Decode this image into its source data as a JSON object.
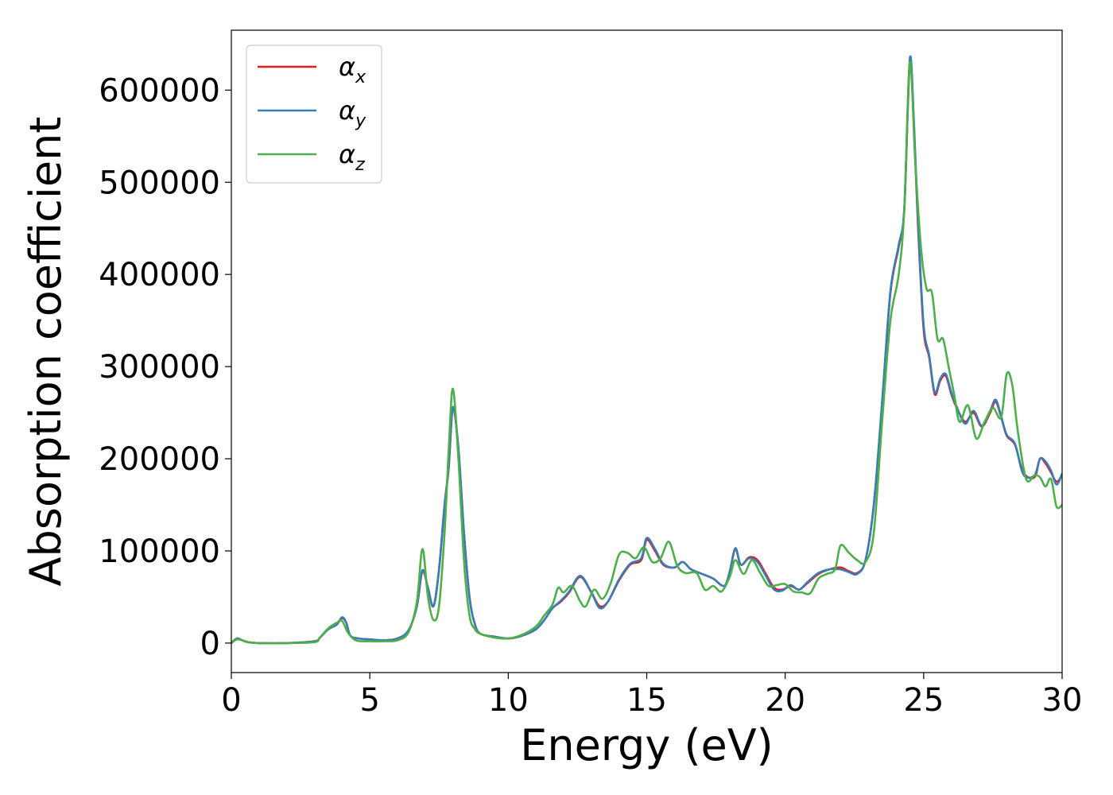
{
  "chart_data": {
    "type": "line",
    "title": "",
    "xlabel": "Energy (eV)",
    "ylabel": "Absorption coefficient",
    "xlim": [
      0,
      30
    ],
    "ylim": [
      -32000,
      665000
    ],
    "xticks": [
      0,
      5,
      10,
      15,
      20,
      25,
      30
    ],
    "yticks": [
      0,
      100000,
      200000,
      300000,
      400000,
      500000,
      600000
    ],
    "grid": false,
    "legend_position": "top-left",
    "series": [
      {
        "name": "α",
        "subscript": "x",
        "color": "#e41a1c",
        "x": [
          0,
          0.2,
          0.4,
          0.6,
          1,
          2,
          3,
          3.2,
          3.5,
          3.8,
          4.0,
          4.15,
          4.3,
          4.6,
          5.0,
          5.5,
          6.0,
          6.4,
          6.7,
          6.9,
          7.1,
          7.3,
          7.5,
          7.7,
          7.85,
          8.0,
          8.2,
          8.4,
          8.6,
          8.8,
          9.0,
          9.5,
          10,
          10.5,
          11,
          11.3,
          11.6,
          11.9,
          12.2,
          12.6,
          13.0,
          13.3,
          13.6,
          14.0,
          14.4,
          14.8,
          15.0,
          15.3,
          15.6,
          16.0,
          16.3,
          16.6,
          17.0,
          17.4,
          17.8,
          18.0,
          18.2,
          18.4,
          18.7,
          19.0,
          19.3,
          19.6,
          19.9,
          20.2,
          20.5,
          20.8,
          21.2,
          21.6,
          22.0,
          22.3,
          22.6,
          22.9,
          23.2,
          23.5,
          23.8,
          24.1,
          24.3,
          24.5,
          24.65,
          24.8,
          25.0,
          25.2,
          25.4,
          25.6,
          25.8,
          26.0,
          26.2,
          26.5,
          26.8,
          27.1,
          27.4,
          27.6,
          27.8,
          28.0,
          28.3,
          28.6,
          29.0,
          29.2,
          29.4,
          29.6,
          29.8,
          30
        ],
        "y": [
          0,
          5000,
          3000,
          1000,
          0,
          0,
          2000,
          6000,
          15000,
          20000,
          27000,
          22000,
          8000,
          5000,
          4000,
          3000,
          5000,
          14000,
          40000,
          78000,
          60000,
          40000,
          80000,
          150000,
          190000,
          255000,
          210000,
          120000,
          50000,
          20000,
          10000,
          7000,
          5000,
          8000,
          15000,
          25000,
          38000,
          45000,
          55000,
          72000,
          55000,
          40000,
          45000,
          68000,
          85000,
          90000,
          112000,
          100000,
          85000,
          82000,
          88000,
          80000,
          75000,
          70000,
          62000,
          78000,
          102000,
          85000,
          93000,
          90000,
          75000,
          60000,
          58000,
          62000,
          58000,
          65000,
          75000,
          80000,
          82000,
          78000,
          76000,
          90000,
          150000,
          260000,
          380000,
          430000,
          470000,
          630000,
          560000,
          450000,
          340000,
          310000,
          270000,
          285000,
          290000,
          270000,
          255000,
          240000,
          250000,
          235000,
          250000,
          262000,
          245000,
          225000,
          215000,
          185000,
          180000,
          200000,
          195000,
          185000,
          175000,
          182000
        ]
      },
      {
        "name": "α",
        "subscript": "y",
        "color": "#377eb8",
        "x": [
          0,
          0.2,
          0.4,
          0.6,
          1,
          2,
          3,
          3.2,
          3.5,
          3.8,
          4.0,
          4.15,
          4.3,
          4.6,
          5.0,
          5.5,
          6.0,
          6.4,
          6.7,
          6.9,
          7.1,
          7.3,
          7.5,
          7.7,
          7.85,
          8.0,
          8.2,
          8.4,
          8.6,
          8.8,
          9.0,
          9.5,
          10,
          10.5,
          11,
          11.3,
          11.6,
          11.9,
          12.2,
          12.6,
          13.0,
          13.3,
          13.6,
          14.0,
          14.4,
          14.8,
          15.0,
          15.3,
          15.6,
          16.0,
          16.3,
          16.6,
          17.0,
          17.4,
          17.8,
          18.0,
          18.2,
          18.4,
          18.7,
          19.0,
          19.3,
          19.6,
          19.9,
          20.2,
          20.5,
          20.8,
          21.2,
          21.6,
          22.0,
          22.3,
          22.6,
          22.9,
          23.2,
          23.5,
          23.8,
          24.1,
          24.3,
          24.5,
          24.65,
          24.8,
          25.0,
          25.2,
          25.4,
          25.6,
          25.8,
          26.0,
          26.2,
          26.5,
          26.8,
          27.1,
          27.4,
          27.6,
          27.8,
          28.0,
          28.3,
          28.6,
          29.0,
          29.2,
          29.4,
          29.6,
          29.8,
          30
        ],
        "y": [
          0,
          5000,
          3000,
          1000,
          0,
          0,
          2000,
          6000,
          15000,
          20000,
          28000,
          22000,
          8000,
          5000,
          4000,
          3000,
          5000,
          14000,
          40000,
          79000,
          60000,
          40000,
          80000,
          150000,
          192000,
          256000,
          212000,
          120000,
          50000,
          20000,
          10000,
          7000,
          5000,
          8000,
          15000,
          25000,
          38000,
          46000,
          56000,
          73000,
          55000,
          38000,
          45000,
          69000,
          86000,
          92000,
          114000,
          102000,
          86000,
          82000,
          88000,
          80000,
          75000,
          70000,
          62000,
          78000,
          103000,
          85000,
          92000,
          88000,
          73000,
          58000,
          57000,
          63000,
          58000,
          66000,
          76000,
          80000,
          80000,
          77000,
          75000,
          90000,
          150000,
          262000,
          382000,
          432000,
          472000,
          634000,
          565000,
          455000,
          345000,
          312000,
          272000,
          287000,
          292000,
          272000,
          256000,
          238000,
          252000,
          236000,
          252000,
          264000,
          246000,
          226000,
          216000,
          183000,
          182000,
          200000,
          197000,
          187000,
          172000,
          184000
        ]
      },
      {
        "name": "α",
        "subscript": "z",
        "color": "#4daf4a",
        "x": [
          0,
          0.2,
          0.4,
          0.6,
          1,
          2,
          3,
          3.2,
          3.5,
          3.8,
          4.0,
          4.2,
          4.5,
          5.0,
          5.5,
          6.0,
          6.4,
          6.7,
          6.9,
          7.1,
          7.3,
          7.5,
          7.7,
          7.85,
          8.0,
          8.2,
          8.4,
          8.6,
          8.8,
          9.0,
          9.5,
          10,
          10.5,
          11,
          11.3,
          11.6,
          11.8,
          12.0,
          12.3,
          12.6,
          12.8,
          13.1,
          13.4,
          13.7,
          14.0,
          14.3,
          14.6,
          14.9,
          15.2,
          15.5,
          15.8,
          16.1,
          16.4,
          16.8,
          17.1,
          17.4,
          17.7,
          18.0,
          18.2,
          18.5,
          18.8,
          19.1,
          19.4,
          19.7,
          20.0,
          20.3,
          20.6,
          20.9,
          21.2,
          21.5,
          21.8,
          22.0,
          22.3,
          22.6,
          22.9,
          23.2,
          23.5,
          23.8,
          24.1,
          24.3,
          24.5,
          24.7,
          24.9,
          25.1,
          25.3,
          25.5,
          25.7,
          25.9,
          26.1,
          26.3,
          26.6,
          26.9,
          27.2,
          27.5,
          27.8,
          28.0,
          28.2,
          28.4,
          28.7,
          29.0,
          29.2,
          29.4,
          29.6,
          29.8,
          30
        ],
        "y": [
          0,
          4000,
          3000,
          1000,
          0,
          0,
          1000,
          6000,
          16000,
          22000,
          24000,
          12000,
          3000,
          2000,
          2000,
          3000,
          12000,
          45000,
          102000,
          50000,
          25000,
          40000,
          120000,
          210000,
          276000,
          200000,
          90000,
          30000,
          15000,
          10000,
          6000,
          5000,
          9000,
          18000,
          30000,
          42000,
          60000,
          55000,
          62000,
          45000,
          40000,
          58000,
          48000,
          65000,
          96000,
          98000,
          92000,
          104000,
          88000,
          92000,
          110000,
          84000,
          76000,
          76000,
          58000,
          62000,
          56000,
          72000,
          90000,
          75000,
          90000,
          76000,
          62000,
          63000,
          64000,
          56000,
          55000,
          54000,
          70000,
          75000,
          80000,
          106000,
          98000,
          90000,
          88000,
          120000,
          240000,
          350000,
          400000,
          470000,
          630000,
          520000,
          430000,
          385000,
          380000,
          330000,
          330000,
          300000,
          270000,
          240000,
          258000,
          222000,
          240000,
          255000,
          245000,
          292000,
          280000,
          230000,
          178000,
          182000,
          180000,
          170000,
          178000,
          148000,
          150000
        ]
      }
    ]
  }
}
